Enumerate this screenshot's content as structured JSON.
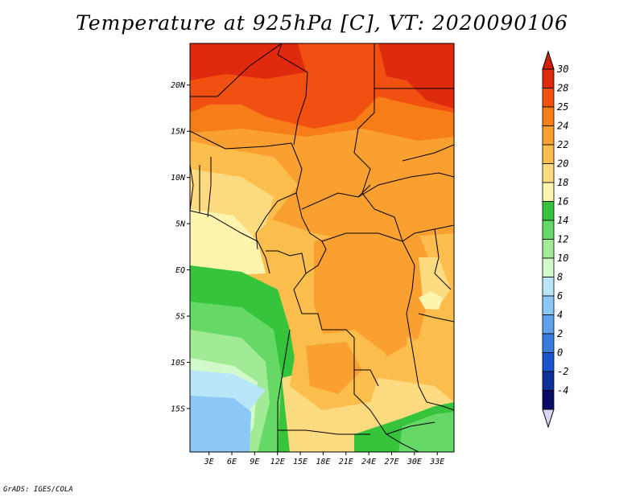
{
  "title": "Temperature at 925hPa [C], VT: 2020090106",
  "credit": "GrADS: IGES/COLA",
  "lat_ticks": [
    {
      "label": "20N",
      "value": 20
    },
    {
      "label": "15N",
      "value": 15
    },
    {
      "label": "10N",
      "value": 10
    },
    {
      "label": "5N",
      "value": 5
    },
    {
      "label": "EQ",
      "value": 0
    },
    {
      "label": "5S",
      "value": -5
    },
    {
      "label": "10S",
      "value": -10
    },
    {
      "label": "15S",
      "value": -15
    }
  ],
  "lon_ticks": [
    {
      "label": "3E",
      "value": 3
    },
    {
      "label": "6E",
      "value": 6
    },
    {
      "label": "9E",
      "value": 9
    },
    {
      "label": "12E",
      "value": 12
    },
    {
      "label": "15E",
      "value": 15
    },
    {
      "label": "18E",
      "value": 18
    },
    {
      "label": "21E",
      "value": 21
    },
    {
      "label": "24E",
      "value": 24
    },
    {
      "label": "27E",
      "value": 27
    },
    {
      "label": "30E",
      "value": 30
    },
    {
      "label": "33E",
      "value": 33
    }
  ],
  "domain": {
    "lon_min": 0.5,
    "lon_max": 35.2,
    "lat_min": -19.7,
    "lat_max": 24.5
  },
  "colorbar": {
    "levels": [
      "30",
      "28",
      "25",
      "24",
      "22",
      "20",
      "18",
      "16",
      "14",
      "12",
      "10",
      "8",
      "6",
      "4",
      "2",
      "0",
      "-2",
      "-4"
    ],
    "colors": [
      "#e02a0e",
      "#f05010",
      "#f77d18",
      "#f9a030",
      "#fbbd4c",
      "#fcda80",
      "#fdf4ae",
      "#36c43c",
      "#66d866",
      "#a2eb96",
      "#d2f9c9",
      "#b8e6f8",
      "#8cc8f7",
      "#5ea2ec",
      "#3a7be0",
      "#1a54cc",
      "#0d3196",
      "#0a0a68"
    ],
    "top_arrow_color": "#d41e0a",
    "bottom_arrow_color": "#dcd5f3"
  },
  "map_colors": {
    "hot_red": "#e02a0e",
    "red_orange": "#f05010",
    "orange": "#f77d18",
    "light_orange": "#f9a030",
    "gold": "#fbbd4c",
    "pale_yellow": "#fcda80",
    "cream": "#fdf4ae",
    "green": "#36c43c",
    "mid_green": "#66d866",
    "light_green": "#a2eb96",
    "pale_green": "#d2f9c9",
    "pale_blue": "#b8e6f8",
    "sky_blue": "#8cc8f7"
  }
}
